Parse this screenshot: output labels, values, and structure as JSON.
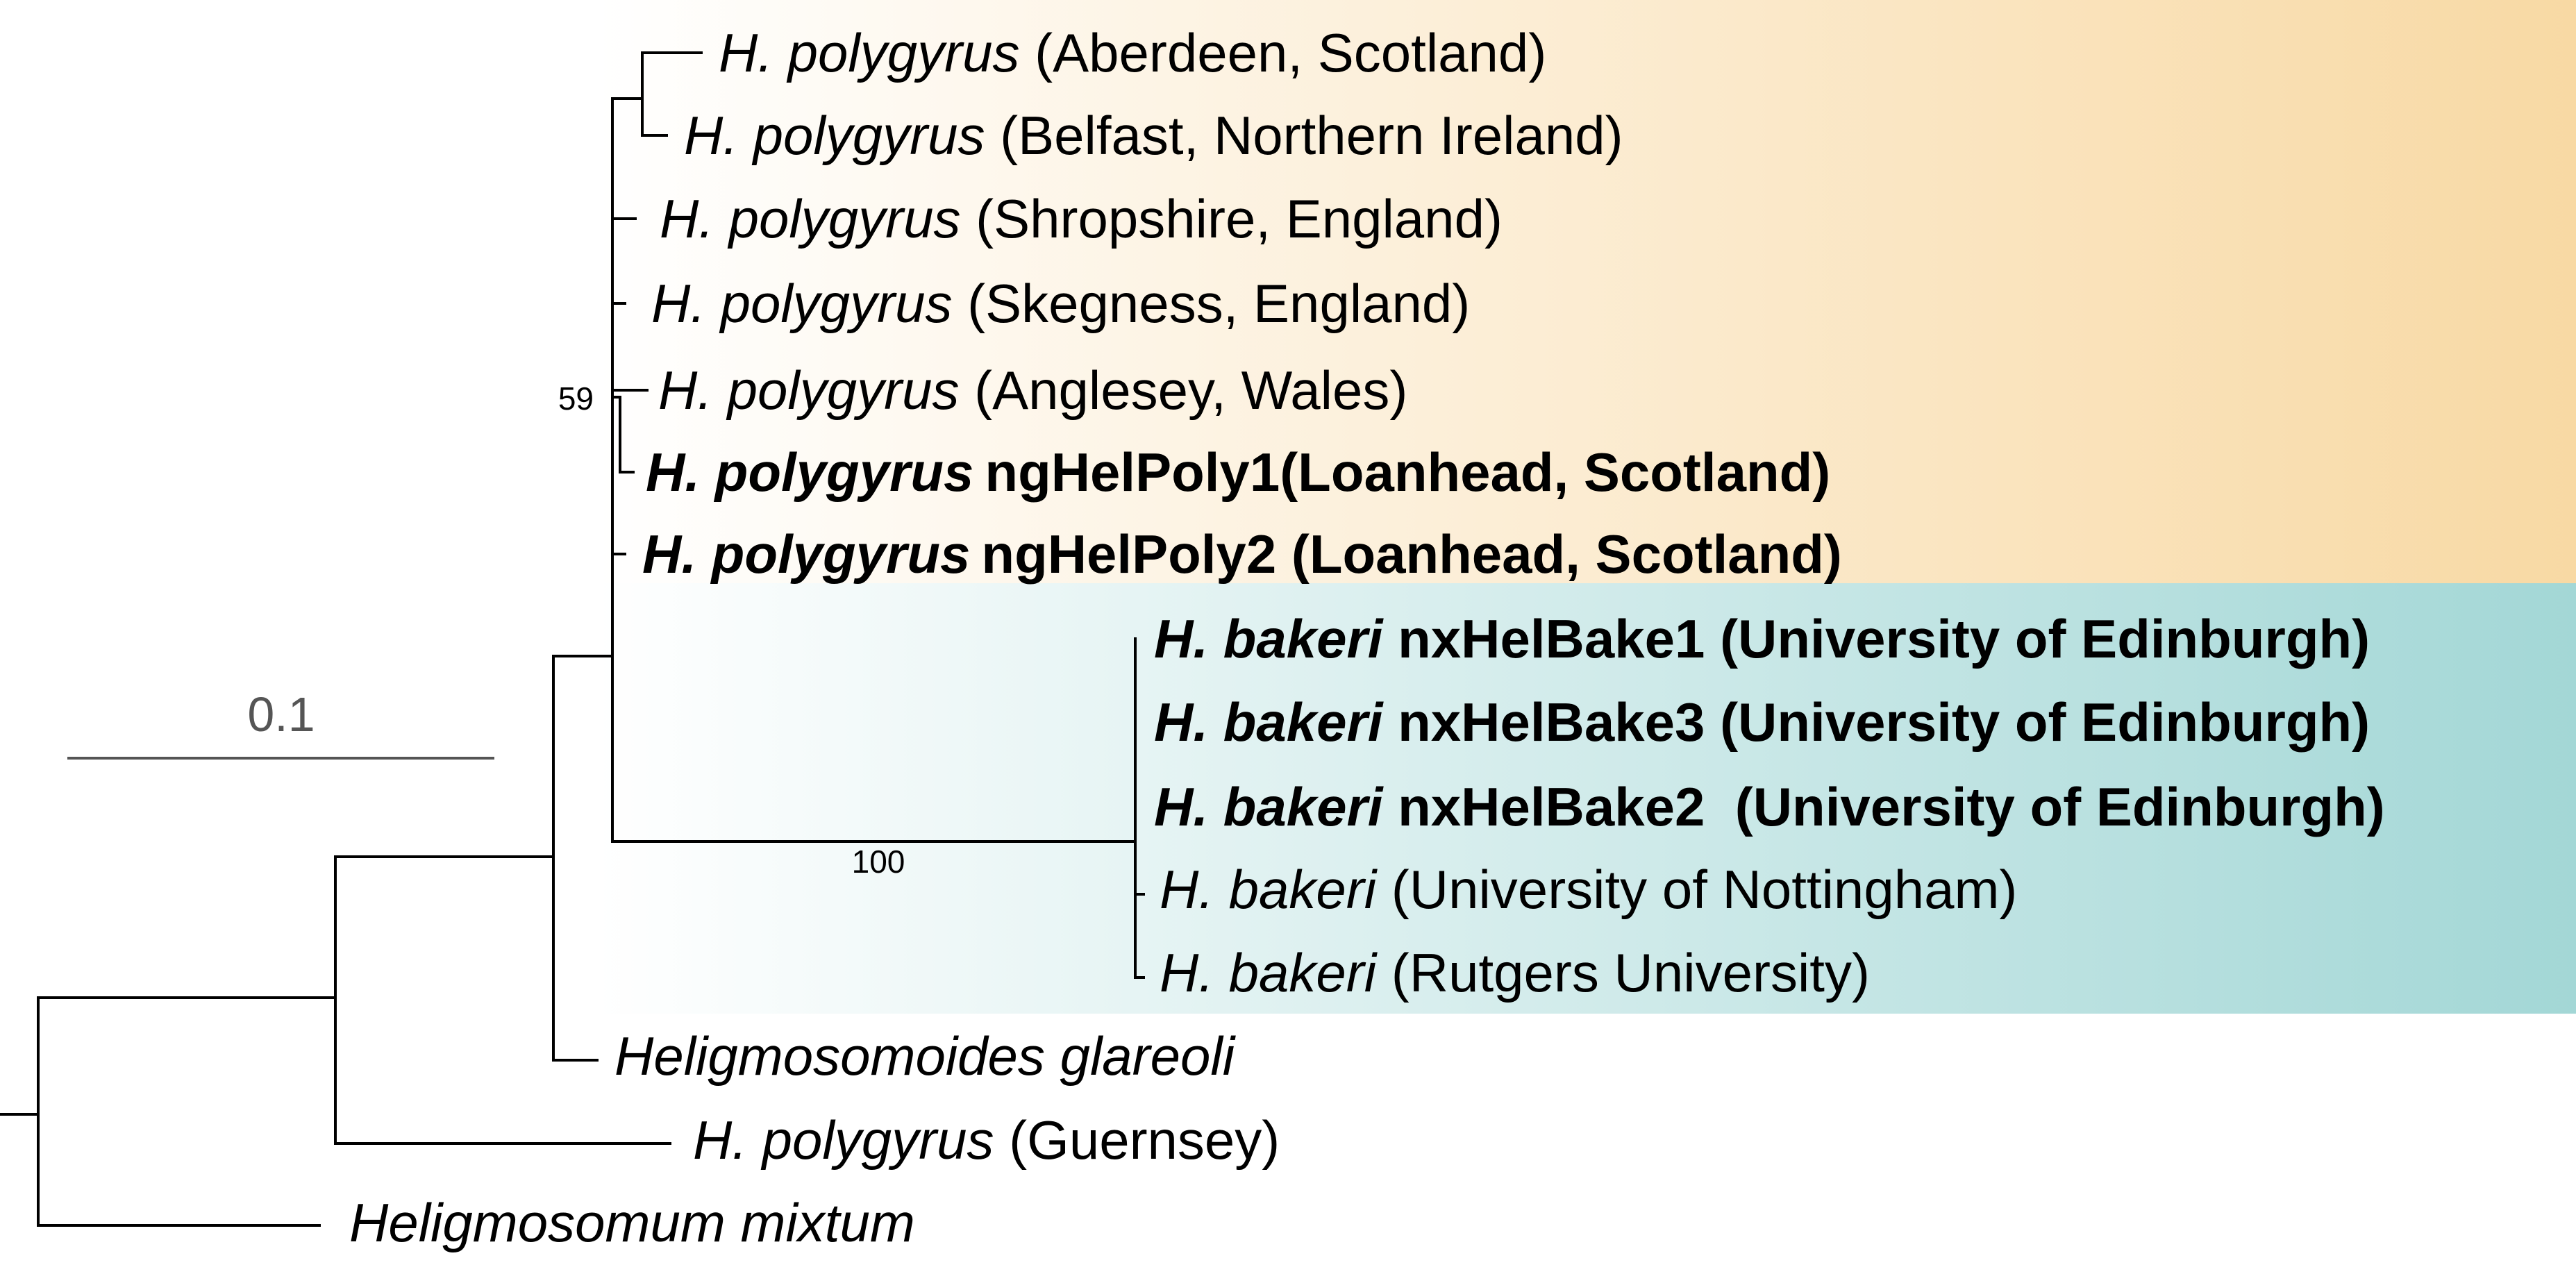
{
  "clades": {
    "polygyrus_color": "#f8d9a4",
    "bakeri_color": "#a3d7d6"
  },
  "scale_bar": {
    "label": "0.1"
  },
  "support": {
    "polygyrus_node": "59",
    "bakeri_node": "100"
  },
  "tips": [
    {
      "species": "H. polygyrus",
      "sep": " ",
      "detail": "(Aberdeen, Scotland)",
      "bold": false
    },
    {
      "species": "H. polygyrus",
      "sep": " ",
      "detail": "(Belfast, Northern Ireland)",
      "bold": false
    },
    {
      "species": "H. polygyrus",
      "sep": " ",
      "detail": "(Shropshire, England)",
      "bold": false
    },
    {
      "species": "H. polygyrus",
      "sep": " ",
      "detail": "(Skegness, England)",
      "bold": false
    },
    {
      "species": "H. polygyrus",
      "sep": " ",
      "detail": "(Anglesey, Wales)",
      "bold": false
    },
    {
      "species": "H. polygyrus",
      "sep": "",
      "detail": "ngHelPoly1(Loanhead, Scotland)",
      "bold": true
    },
    {
      "species": "H. polygyrus",
      "sep": "",
      "detail": "ngHelPoly2 (Loanhead, Scotland)",
      "bold": true
    },
    {
      "species": "H. bakeri",
      "sep": " ",
      "detail": "nxHelBake1 (University of Edinburgh)",
      "bold": true
    },
    {
      "species": "H. bakeri",
      "sep": " ",
      "detail": "nxHelBake3 (University of Edinburgh)",
      "bold": true
    },
    {
      "species": "H. bakeri",
      "sep": " ",
      "detail": "nxHelBake2  (University of Edinburgh)",
      "bold": true
    },
    {
      "species": "H. bakeri",
      "sep": " ",
      "detail": "(University of Nottingham)",
      "bold": false
    },
    {
      "species": "H. bakeri",
      "sep": " ",
      "detail": "(Rutgers University)",
      "bold": false
    },
    {
      "species": "Heligmosomoides glareoli",
      "sep": "",
      "detail": "",
      "bold": false
    },
    {
      "species": "H. polygyrus",
      "sep": " ",
      "detail": "(Guernsey)",
      "bold": false
    },
    {
      "species": "Heligmosomum mixtum",
      "sep": "",
      "detail": "",
      "bold": false
    }
  ]
}
